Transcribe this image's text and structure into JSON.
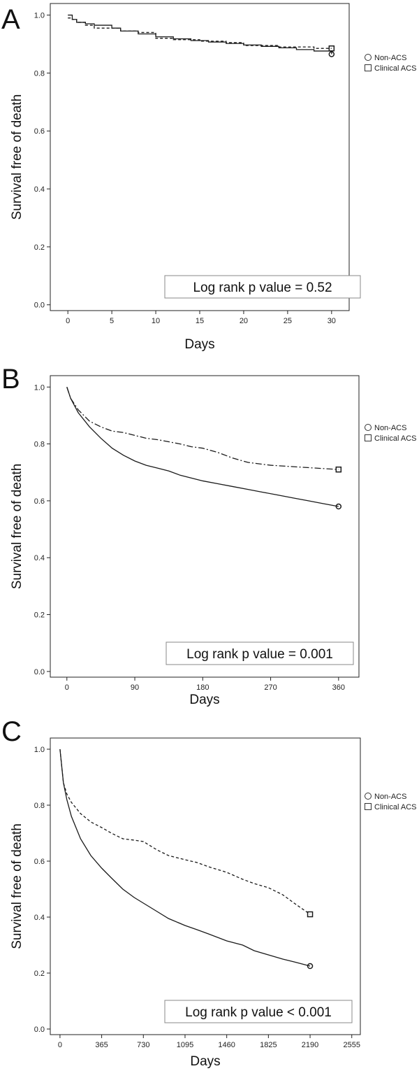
{
  "chart_data": [
    {
      "type": "line",
      "panel": "A",
      "ylabel": "Survival free of death",
      "xlabel": "Days",
      "xlim": [
        -2,
        32
      ],
      "ylim": [
        -0.02,
        1.04
      ],
      "xticks": [
        0,
        5,
        10,
        15,
        20,
        25,
        30
      ],
      "xtick_labels": [
        "0",
        "5",
        "10",
        "15",
        "20",
        "25",
        "30"
      ],
      "yticks": [
        0,
        0.2,
        0.4,
        0.6,
        0.8,
        1.0
      ],
      "ytick_labels": [
        "0.0",
        "0.2",
        "0.4",
        "0.6",
        "0.8",
        "1.0"
      ],
      "annotation": "Log rank p value = 0.52",
      "legend": {
        "placement": "right",
        "entries": [
          {
            "label": "Non-ACS",
            "marker": "circle"
          },
          {
            "label": "Clinical ACS",
            "marker": "square"
          }
        ]
      },
      "series": [
        {
          "name": "Non-ACS",
          "style": "solid",
          "step": true,
          "marker": "circle",
          "x": [
            0,
            0.5,
            1,
            2,
            3,
            5,
            6,
            8,
            10,
            12,
            14,
            16,
            18,
            20,
            22,
            24,
            26,
            28,
            30
          ],
          "y": [
            1.0,
            0.985,
            0.975,
            0.97,
            0.965,
            0.955,
            0.945,
            0.935,
            0.925,
            0.918,
            0.912,
            0.907,
            0.902,
            0.897,
            0.892,
            0.887,
            0.881,
            0.876,
            0.865
          ]
        },
        {
          "name": "Clinical ACS",
          "style": "dashed",
          "step": true,
          "marker": "square",
          "x": [
            0,
            0.5,
            1,
            2,
            3,
            6,
            8,
            10,
            12,
            15,
            18,
            20,
            24,
            28,
            30
          ],
          "y": [
            0.99,
            0.985,
            0.975,
            0.965,
            0.955,
            0.945,
            0.94,
            0.92,
            0.915,
            0.91,
            0.905,
            0.895,
            0.89,
            0.885,
            0.885
          ]
        }
      ]
    },
    {
      "type": "line",
      "panel": "B",
      "ylabel": "Survival free of death",
      "xlabel": "Days",
      "xlim": [
        -22,
        387
      ],
      "ylim": [
        -0.02,
        1.04
      ],
      "xticks": [
        0,
        90,
        180,
        270,
        360
      ],
      "xtick_labels": [
        "0",
        "90",
        "180",
        "270",
        "360"
      ],
      "yticks": [
        0,
        0.2,
        0.4,
        0.6,
        0.8,
        1.0
      ],
      "ytick_labels": [
        "0.0",
        "0.2",
        "0.4",
        "0.6",
        "0.8",
        "1.0"
      ],
      "annotation": "Log rank p value = 0.001",
      "legend": {
        "placement": "right",
        "entries": [
          {
            "label": "Non-ACS",
            "marker": "circle"
          },
          {
            "label": "Clinical ACS",
            "marker": "square"
          }
        ]
      },
      "series": [
        {
          "name": "Non-ACS",
          "style": "solid",
          "step": false,
          "marker": "circle",
          "x": [
            0,
            5,
            15,
            30,
            45,
            60,
            75,
            90,
            105,
            120,
            135,
            150,
            165,
            180,
            200,
            220,
            240,
            260,
            280,
            300,
            320,
            340,
            360
          ],
          "y": [
            1.0,
            0.96,
            0.91,
            0.86,
            0.82,
            0.785,
            0.76,
            0.74,
            0.725,
            0.715,
            0.705,
            0.69,
            0.68,
            0.67,
            0.66,
            0.65,
            0.64,
            0.63,
            0.62,
            0.61,
            0.6,
            0.59,
            0.58
          ]
        },
        {
          "name": "Clinical ACS",
          "style": "dash-dot",
          "step": false,
          "marker": "square",
          "x": [
            0,
            5,
            15,
            30,
            45,
            60,
            75,
            90,
            105,
            120,
            150,
            165,
            180,
            200,
            220,
            240,
            270,
            300,
            330,
            360
          ],
          "y": [
            1.0,
            0.96,
            0.92,
            0.88,
            0.86,
            0.845,
            0.84,
            0.83,
            0.82,
            0.815,
            0.8,
            0.79,
            0.785,
            0.77,
            0.75,
            0.735,
            0.725,
            0.72,
            0.715,
            0.71
          ]
        }
      ]
    },
    {
      "type": "line",
      "panel": "C",
      "ylabel": "Survival free of death",
      "xlabel": "Days",
      "xlim": [
        -85,
        2630
      ],
      "ylim": [
        -0.02,
        1.04
      ],
      "xticks": [
        0,
        365,
        730,
        1095,
        1460,
        1825,
        2190,
        2555
      ],
      "xtick_labels": [
        "0",
        "365",
        "730",
        "1095",
        "1460",
        "1825",
        "2190",
        "2555"
      ],
      "yticks": [
        0,
        0.2,
        0.4,
        0.6,
        0.8,
        1.0
      ],
      "ytick_labels": [
        "0.0",
        "0.2",
        "0.4",
        "0.6",
        "0.8",
        "1.0"
      ],
      "annotation": "Log rank p value < 0.001",
      "legend": {
        "placement": "right",
        "entries": [
          {
            "label": "Non-ACS",
            "marker": "circle"
          },
          {
            "label": "Clinical ACS",
            "marker": "square"
          }
        ]
      },
      "series": [
        {
          "name": "Non-ACS",
          "style": "solid",
          "step": false,
          "marker": "circle",
          "x": [
            0,
            30,
            60,
            100,
            180,
            270,
            365,
            450,
            550,
            650,
            730,
            850,
            950,
            1095,
            1200,
            1300,
            1460,
            1600,
            1700,
            1825,
            1950,
            2050,
            2190
          ],
          "y": [
            1.0,
            0.88,
            0.82,
            0.76,
            0.68,
            0.62,
            0.575,
            0.54,
            0.5,
            0.47,
            0.45,
            0.42,
            0.395,
            0.37,
            0.355,
            0.34,
            0.315,
            0.3,
            0.28,
            0.265,
            0.25,
            0.24,
            0.225
          ]
        },
        {
          "name": "Clinical ACS",
          "style": "dashed",
          "step": false,
          "marker": "square",
          "x": [
            0,
            30,
            60,
            100,
            180,
            270,
            365,
            450,
            550,
            650,
            730,
            850,
            950,
            1095,
            1200,
            1300,
            1460,
            1600,
            1700,
            1825,
            1950,
            2050,
            2190
          ],
          "y": [
            1.0,
            0.88,
            0.84,
            0.81,
            0.77,
            0.74,
            0.72,
            0.7,
            0.68,
            0.675,
            0.67,
            0.64,
            0.62,
            0.605,
            0.595,
            0.58,
            0.56,
            0.535,
            0.52,
            0.505,
            0.48,
            0.45,
            0.41
          ]
        }
      ]
    }
  ]
}
